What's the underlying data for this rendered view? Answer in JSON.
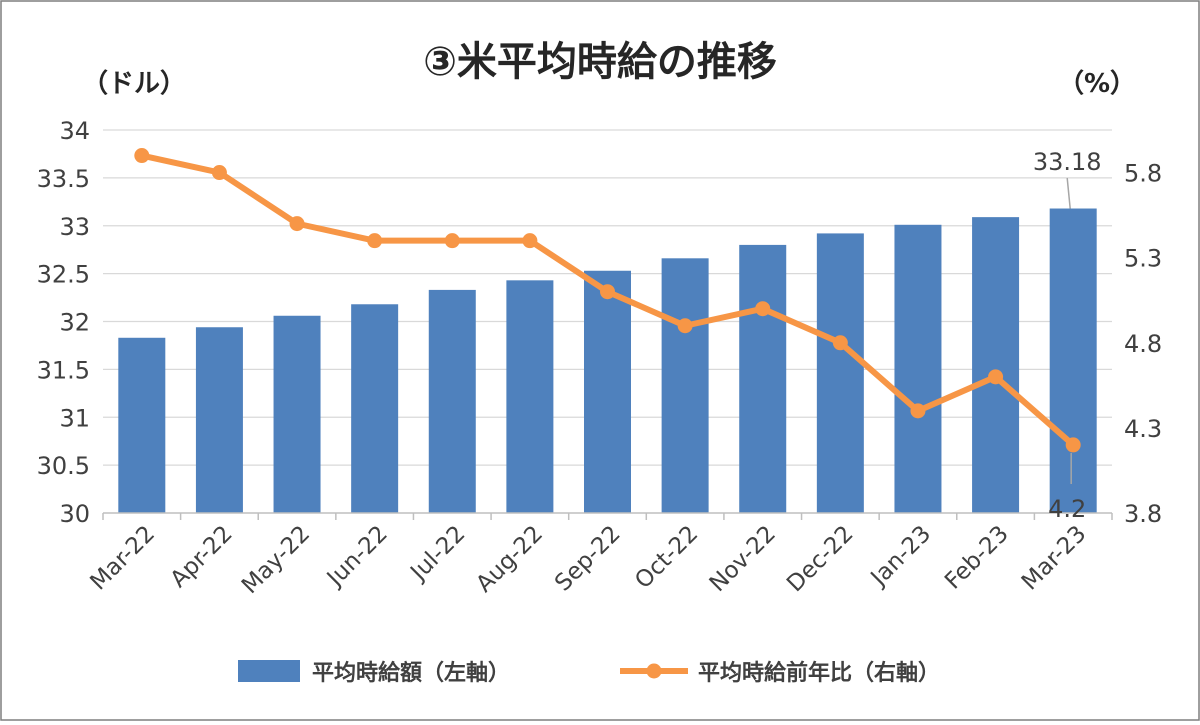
{
  "chart_data": {
    "type": "bar",
    "title": "③米平均時給の推移",
    "y_left_unit": "（ドル）",
    "y_right_unit": "（%）",
    "categories": [
      "Mar-22",
      "Apr-22",
      "May-22",
      "Jun-22",
      "Jul-22",
      "Aug-22",
      "Sep-22",
      "Oct-22",
      "Nov-22",
      "Dec-22",
      "Jan-23",
      "Feb-23",
      "Mar-23"
    ],
    "series": [
      {
        "name": "平均時給額（左軸）",
        "type": "bar",
        "axis": "left",
        "color": "#4F81BD",
        "values": [
          31.83,
          31.94,
          32.06,
          32.18,
          32.33,
          32.43,
          32.53,
          32.66,
          32.8,
          32.92,
          33.01,
          33.09,
          33.18
        ]
      },
      {
        "name": "平均時給前年比（右軸）",
        "type": "line",
        "axis": "right",
        "color": "#F79646",
        "values": [
          5.9,
          5.8,
          5.5,
          5.4,
          5.4,
          5.4,
          5.1,
          4.9,
          5.0,
          4.8,
          4.4,
          4.6,
          4.2
        ]
      }
    ],
    "y_left": {
      "min": 30,
      "max": 34,
      "ticks": [
        30,
        30.5,
        31,
        31.5,
        32,
        32.5,
        33,
        33.5,
        34
      ]
    },
    "y_right": {
      "min": 3.8,
      "max": 6.05,
      "ticks": [
        3.8,
        4.3,
        4.8,
        5.3,
        5.8
      ]
    },
    "annotations": {
      "last_bar_label": "33.18",
      "last_line_label": "4.2"
    },
    "grid": true,
    "legend_position": "bottom"
  }
}
